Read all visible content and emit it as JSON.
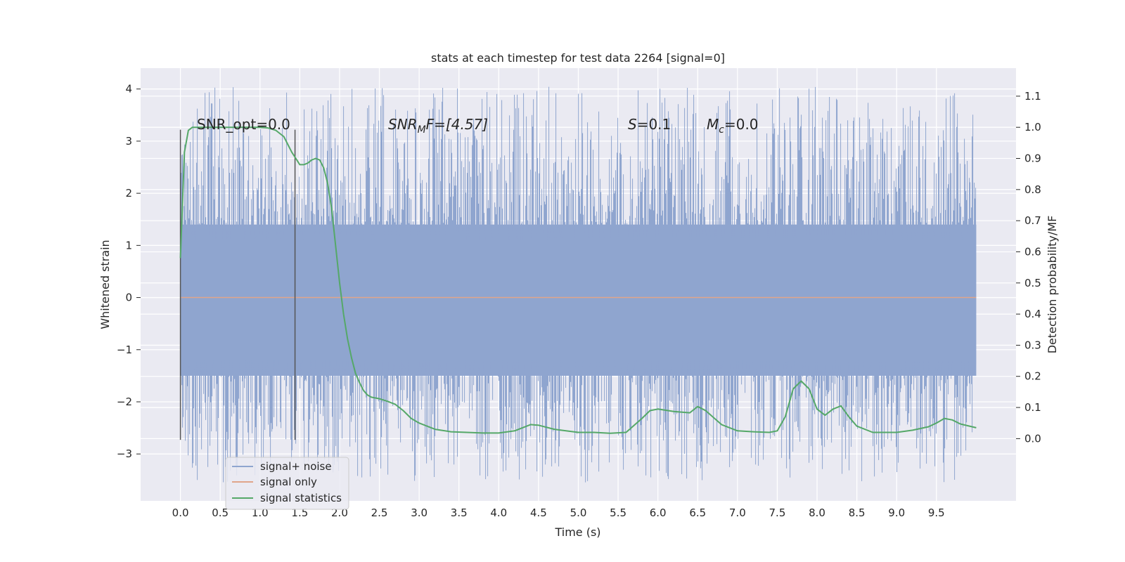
{
  "chart_data": {
    "type": "line",
    "title": "stats at each timestep for test data 2264 [signal=0]",
    "xlabel": "Time (s)",
    "ylabel": "Whitened strain",
    "ylabel_right": "Detection probability/MF",
    "xlim": [
      -0.5,
      10.5
    ],
    "ylim": [
      -3.9,
      4.4
    ],
    "ylim_right": [
      -0.2,
      1.19
    ],
    "x_ticks": [
      0.0,
      0.5,
      1.0,
      1.5,
      2.0,
      2.5,
      3.0,
      3.5,
      4.0,
      4.5,
      5.0,
      5.5,
      6.0,
      6.5,
      7.0,
      7.5,
      8.0,
      8.5,
      9.0,
      9.5
    ],
    "y_ticks": [
      -3,
      -2,
      -1,
      0,
      1,
      2,
      3,
      4
    ],
    "y_ticks_right": [
      0.0,
      0.1,
      0.2,
      0.3,
      0.4,
      0.5,
      0.6,
      0.7,
      0.8,
      0.9,
      1.0,
      1.1
    ],
    "grid": true,
    "legend_position": "lower-left",
    "annotations": {
      "snr_opt": "SNR_opt=0.0",
      "snr_mf_italic": "SNR",
      "snr_mf_sub": "M",
      "snr_mf_rest": "F=[4.57]",
      "s_italic": "S",
      "s_rest": "=0.1",
      "mc_italic": "M",
      "mc_sub": "c",
      "mc_rest": "=0.0"
    },
    "markers": [
      {
        "x": 0.0,
        "y_range": [
          -2.73,
          3.22
        ]
      },
      {
        "x": 1.44,
        "y_range": [
          -2.73,
          3.22
        ]
      }
    ],
    "noise_envelope": {
      "x_range": [
        0.0,
        10.0
      ],
      "core_upper": 1.4,
      "core_lower": -1.5,
      "spike_max": 4.05,
      "spike_min": -3.55
    },
    "series": [
      {
        "name": "signal+ noise",
        "color": "#8fa5cf",
        "note_values": "dense noise trace"
      },
      {
        "name": "signal only",
        "color": "#e0a58a",
        "x": [
          0.0,
          10.0
        ],
        "y": [
          0.0,
          0.0
        ]
      },
      {
        "name": "signal statistics",
        "color": "#55a868",
        "axis": "right",
        "x": [
          0.0,
          0.05,
          0.1,
          0.15,
          0.2,
          0.4,
          0.6,
          0.8,
          1.0,
          1.1,
          1.2,
          1.3,
          1.4,
          1.45,
          1.5,
          1.55,
          1.6,
          1.65,
          1.7,
          1.75,
          1.8,
          1.85,
          1.9,
          1.95,
          2.0,
          2.05,
          2.1,
          2.15,
          2.2,
          2.25,
          2.3,
          2.35,
          2.4,
          2.5,
          2.6,
          2.7,
          2.8,
          2.9,
          3.0,
          3.2,
          3.4,
          3.6,
          3.8,
          4.0,
          4.2,
          4.4,
          4.5,
          4.7,
          5.0,
          5.2,
          5.4,
          5.6,
          5.8,
          5.9,
          6.0,
          6.2,
          6.4,
          6.5,
          6.6,
          6.8,
          7.0,
          7.2,
          7.4,
          7.5,
          7.6,
          7.7,
          7.8,
          7.9,
          8.0,
          8.1,
          8.2,
          8.3,
          8.4,
          8.5,
          8.7,
          9.0,
          9.2,
          9.4,
          9.5,
          9.6,
          9.7,
          9.8,
          10.0
        ],
        "y": [
          0.58,
          0.92,
          0.99,
          1.0,
          1.0,
          1.0,
          1.0,
          1.0,
          1.0,
          0.998,
          0.99,
          0.97,
          0.92,
          0.9,
          0.88,
          0.88,
          0.885,
          0.895,
          0.9,
          0.895,
          0.87,
          0.82,
          0.74,
          0.62,
          0.5,
          0.4,
          0.32,
          0.26,
          0.21,
          0.18,
          0.155,
          0.14,
          0.133,
          0.128,
          0.12,
          0.11,
          0.09,
          0.065,
          0.05,
          0.03,
          0.022,
          0.02,
          0.018,
          0.018,
          0.025,
          0.045,
          0.043,
          0.03,
          0.02,
          0.02,
          0.017,
          0.02,
          0.065,
          0.09,
          0.095,
          0.087,
          0.083,
          0.103,
          0.09,
          0.045,
          0.025,
          0.022,
          0.02,
          0.025,
          0.07,
          0.16,
          0.185,
          0.16,
          0.095,
          0.075,
          0.095,
          0.105,
          0.07,
          0.04,
          0.02,
          0.02,
          0.027,
          0.038,
          0.05,
          0.065,
          0.06,
          0.047,
          0.035
        ]
      }
    ]
  }
}
